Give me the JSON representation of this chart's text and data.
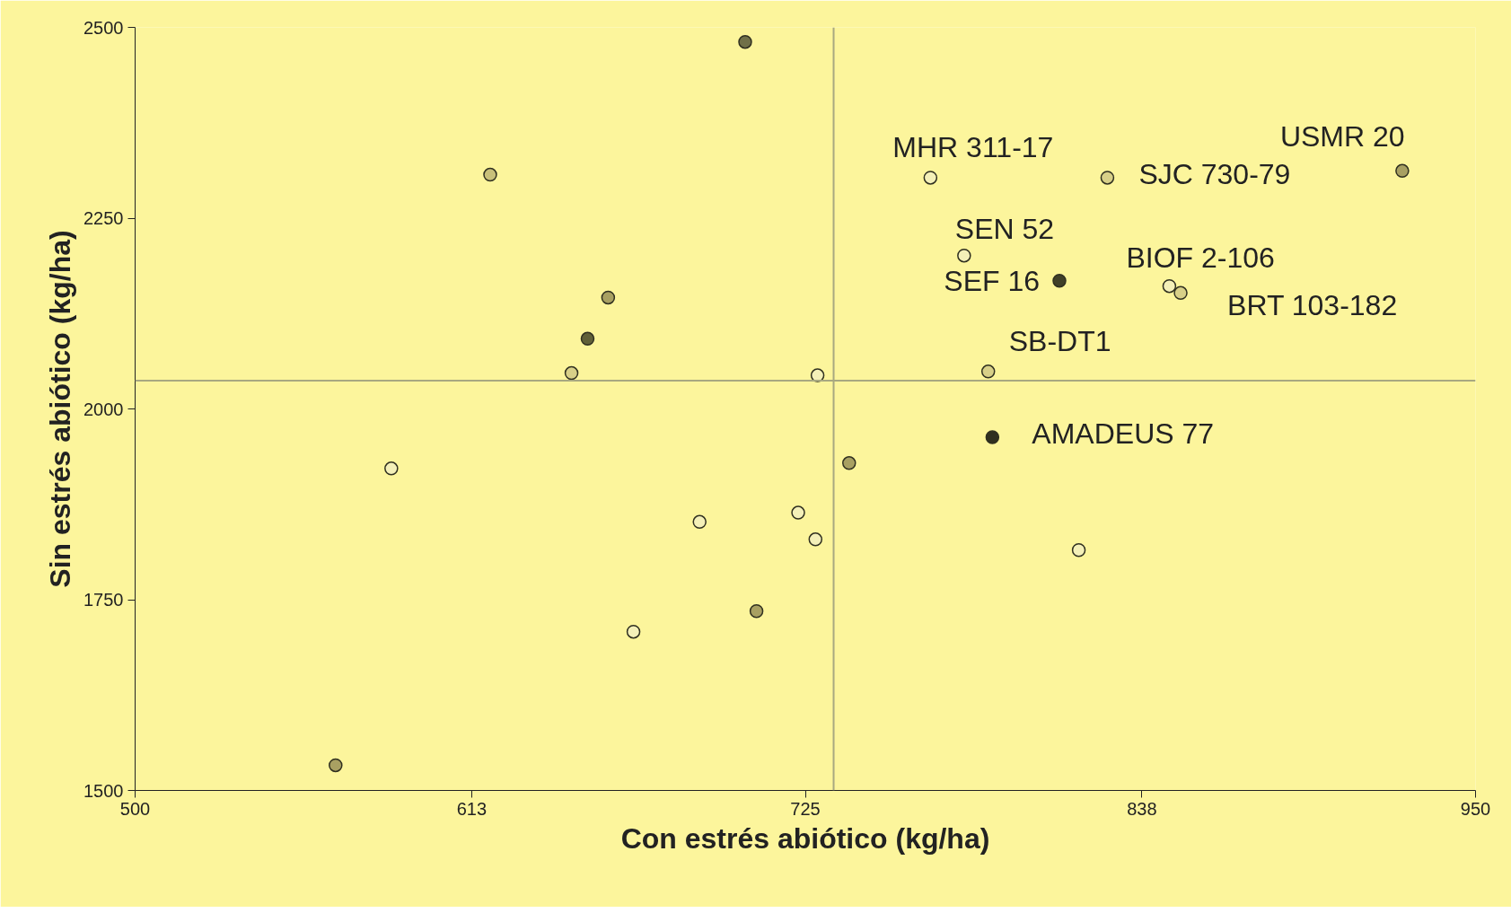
{
  "chart_data": {
    "type": "scatter",
    "xlabel": "Con estrés abiótico (kg/ha)",
    "ylabel": "Sin estrés abiótico (kg/ha)",
    "x": [
      704.8,
      619.2,
      658.8,
      651.9,
      646.5,
      729.1,
      767,
      826.4,
      925.4,
      778.3,
      810.3,
      847.2,
      851.0,
      786.4,
      787.8,
      586,
      739.7,
      689.5,
      722.6,
      728.4,
      816.8,
      667.3,
      708.6,
      567.3
    ],
    "values": [
      2481,
      2307,
      2146,
      2092,
      2047,
      2044,
      2303,
      2303,
      2312,
      2201,
      2168,
      2161,
      2152,
      2049,
      1963,
      1922,
      1929,
      1852,
      1864,
      1829,
      1815,
      1708,
      1735,
      1533
    ],
    "colors": [
      "#707048",
      "#c8c07a",
      "#a8a062",
      "#606038",
      "#d8d088",
      "#f4f0b8",
      "#f4f0b8",
      "#d8d088",
      "#a8a062",
      "#f4f0b8",
      "#404028",
      "#f4f0b8",
      "#d8d088",
      "#d8d088",
      "#303020",
      "#f4f0b8",
      "#a8a062",
      "#f4f0b8",
      "#f4f0b8",
      "#f4f0b8",
      "#f4f0b8",
      "#f4f0b8",
      "#a8a062",
      "#a8a062"
    ],
    "marker": "circle",
    "xlim": [
      500,
      950
    ],
    "xticks": [
      500,
      613,
      725,
      838,
      950
    ],
    "ylim": [
      1500,
      2500
    ],
    "yticks": [
      1500,
      1750,
      2000,
      2250,
      2500
    ],
    "grid": false,
    "ref_lines": [
      {
        "axis": "x",
        "value": 734.5,
        "color": "#a8a880"
      },
      {
        "axis": "y",
        "value": 2037,
        "color": "#a8a880"
      }
    ],
    "annotations": [
      {
        "text": "MHR 311-17",
        "x": 767,
        "y": 2303
      },
      {
        "text": "SJC 730-79",
        "x": 826.4,
        "y": 2303
      },
      {
        "text": "USMR 20",
        "x": 925.4,
        "y": 2312
      },
      {
        "text": "SEN 52",
        "x": 778.3,
        "y": 2201
      },
      {
        "text": "SEF 16",
        "x": 810.3,
        "y": 2168
      },
      {
        "text": "BIOF 2-106",
        "x": 847.2,
        "y": 2161
      },
      {
        "text": "BRT 103-182",
        "x": 851.0,
        "y": 2152
      },
      {
        "text": "SB-DT1",
        "x": 786.4,
        "y": 2049
      },
      {
        "text": "AMADEUS 77",
        "x": 787.8,
        "y": 1963
      }
    ]
  }
}
